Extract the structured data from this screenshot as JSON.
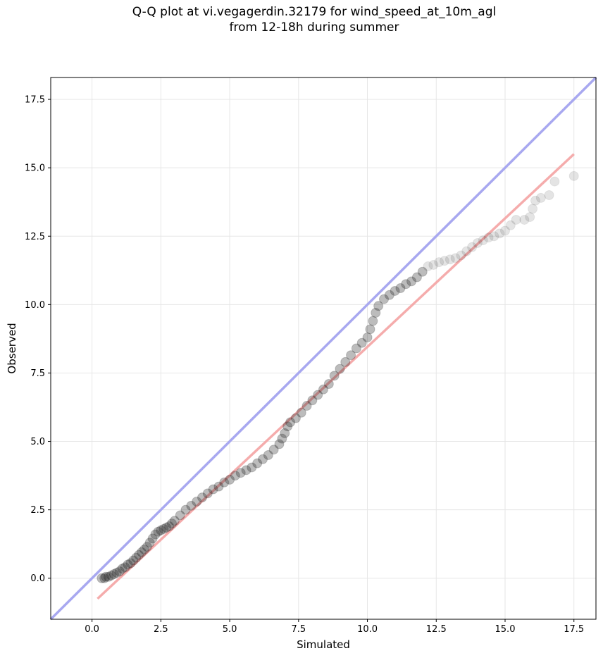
{
  "chart_data": {
    "type": "scatter",
    "title_lines": [
      "Q-Q plot at vi.vegagerdin.32179 for wind_speed_at_10m_agl",
      "from 12-18h during summer"
    ],
    "xlabel": "Simulated",
    "ylabel": "Observed",
    "xlim": [
      -1.5,
      18.3
    ],
    "ylim": [
      -1.5,
      18.3
    ],
    "x_ticks": [
      0.0,
      2.5,
      5.0,
      7.5,
      10.0,
      12.5,
      15.0,
      17.5
    ],
    "y_ticks": [
      0.0,
      2.5,
      5.0,
      7.5,
      10.0,
      12.5,
      15.0,
      17.5
    ],
    "x_tick_labels": [
      "0.0",
      "2.5",
      "5.0",
      "7.5",
      "10.0",
      "12.5",
      "15.0",
      "17.5"
    ],
    "y_tick_labels": [
      "0.0",
      "2.5",
      "5.0",
      "7.5",
      "10.0",
      "12.5",
      "15.0",
      "17.5"
    ],
    "grid": true,
    "identity_line": {
      "color": "#a8a8f0",
      "x": [
        -1.5,
        18.3
      ],
      "y": [
        -1.5,
        18.3
      ]
    },
    "fit_line": {
      "color": "#f4a8a8",
      "x": [
        0.2,
        17.5
      ],
      "y": [
        -0.75,
        15.5
      ]
    },
    "point_color": "#222222",
    "points": {
      "x": [
        0.35,
        0.45,
        0.5,
        0.6,
        0.7,
        0.8,
        0.9,
        1.0,
        1.1,
        1.2,
        1.3,
        1.4,
        1.5,
        1.6,
        1.7,
        1.8,
        1.9,
        2.0,
        2.1,
        2.2,
        2.3,
        2.4,
        2.5,
        2.6,
        2.7,
        2.8,
        2.9,
        3.0,
        3.2,
        3.4,
        3.6,
        3.8,
        4.0,
        4.2,
        4.4,
        4.6,
        4.8,
        5.0,
        5.2,
        5.4,
        5.6,
        5.8,
        6.0,
        6.2,
        6.4,
        6.6,
        6.8,
        6.9,
        7.0,
        7.1,
        7.2,
        7.4,
        7.6,
        7.8,
        8.0,
        8.2,
        8.4,
        8.6,
        8.8,
        9.0,
        9.2,
        9.4,
        9.6,
        9.8,
        10.0,
        10.1,
        10.2,
        10.3,
        10.4,
        10.6,
        10.8,
        11.0,
        11.2,
        11.4,
        11.6,
        11.8,
        12.0,
        12.2,
        12.4,
        12.6,
        12.8,
        13.0,
        13.2,
        13.4,
        13.6,
        13.8,
        14.0,
        14.2,
        14.4,
        14.6,
        14.8,
        15.0,
        15.2,
        15.4,
        15.7,
        15.9,
        16.0,
        16.1,
        16.3,
        16.6,
        16.8,
        17.5
      ],
      "y": [
        0.0,
        0.0,
        0.05,
        0.05,
        0.1,
        0.15,
        0.2,
        0.25,
        0.35,
        0.4,
        0.5,
        0.55,
        0.65,
        0.75,
        0.85,
        0.95,
        1.05,
        1.15,
        1.3,
        1.45,
        1.6,
        1.7,
        1.75,
        1.8,
        1.85,
        1.9,
        2.0,
        2.1,
        2.3,
        2.5,
        2.65,
        2.8,
        2.95,
        3.1,
        3.25,
        3.35,
        3.5,
        3.6,
        3.75,
        3.85,
        3.95,
        4.05,
        4.2,
        4.35,
        4.5,
        4.7,
        4.9,
        5.1,
        5.3,
        5.55,
        5.7,
        5.85,
        6.05,
        6.3,
        6.5,
        6.7,
        6.9,
        7.1,
        7.4,
        7.65,
        7.9,
        8.15,
        8.4,
        8.6,
        8.8,
        9.1,
        9.4,
        9.7,
        9.95,
        10.2,
        10.35,
        10.5,
        10.6,
        10.75,
        10.85,
        11.0,
        11.2,
        11.4,
        11.45,
        11.55,
        11.6,
        11.65,
        11.7,
        11.8,
        11.95,
        12.1,
        12.25,
        12.35,
        12.45,
        12.5,
        12.6,
        12.7,
        12.9,
        13.1,
        13.1,
        13.2,
        13.5,
        13.8,
        13.9,
        14.0,
        14.5,
        14.7
      ]
    }
  }
}
